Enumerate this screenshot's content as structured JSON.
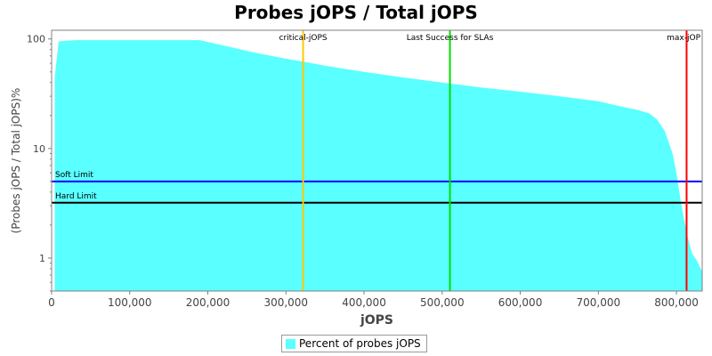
{
  "chart_data": {
    "type": "area",
    "title": "Probes jOPS / Total jOPS",
    "xlabel": "jOPS",
    "ylabel": "(Probes jOPS / Total jOPS)%",
    "xlim": [
      0,
      833000
    ],
    "ylim": [
      0.5,
      120
    ],
    "y_scale": "log",
    "grid": false,
    "legend_position": "bottom",
    "x_ticks": [
      0,
      100000,
      200000,
      300000,
      400000,
      500000,
      600000,
      700000,
      800000
    ],
    "x_tick_labels": [
      "0",
      "100,000",
      "200,000",
      "300,000",
      "400,000",
      "500,000",
      "600,000",
      "700,000",
      "800,000"
    ],
    "y_ticks": [
      1,
      10,
      100
    ],
    "y_tick_labels": [
      "1",
      "10",
      "100"
    ],
    "series": [
      {
        "name": "Percent of probes jOPS",
        "color": "#5affff",
        "x": [
          4000,
          9000,
          30000,
          60000,
          100000,
          150000,
          190000,
          200000,
          230000,
          260000,
          300000,
          322000,
          350000,
          400000,
          450000,
          500000,
          550000,
          600000,
          650000,
          700000,
          720000,
          750000,
          765000,
          775000,
          785000,
          795000,
          800000,
          805000,
          810000,
          815000,
          820000,
          826000,
          833000
        ],
        "y": [
          45,
          95,
          97.5,
          97.5,
          97.5,
          97.5,
          97.5,
          94,
          84,
          75,
          66,
          62,
          57,
          50,
          44.5,
          40,
          36,
          33,
          30,
          27,
          25,
          22.5,
          21,
          18.5,
          14.5,
          9,
          6,
          3.5,
          2.2,
          1.5,
          1.1,
          0.95,
          0.75
        ]
      }
    ],
    "vertical_markers": [
      {
        "label": "critical-jOPS",
        "x": 322000,
        "color": "#ffc800"
      },
      {
        "label": "Last Success for SLAs",
        "x": 510000,
        "color": "#00e000"
      },
      {
        "label": "max-jOP",
        "x": 813000,
        "color": "#ff0000"
      }
    ],
    "horizontal_markers": [
      {
        "label": "Soft Limit",
        "y": 5,
        "color": "#0000ff"
      },
      {
        "label": "Hard Limit",
        "y": 3.2,
        "color": "#000000"
      }
    ]
  }
}
